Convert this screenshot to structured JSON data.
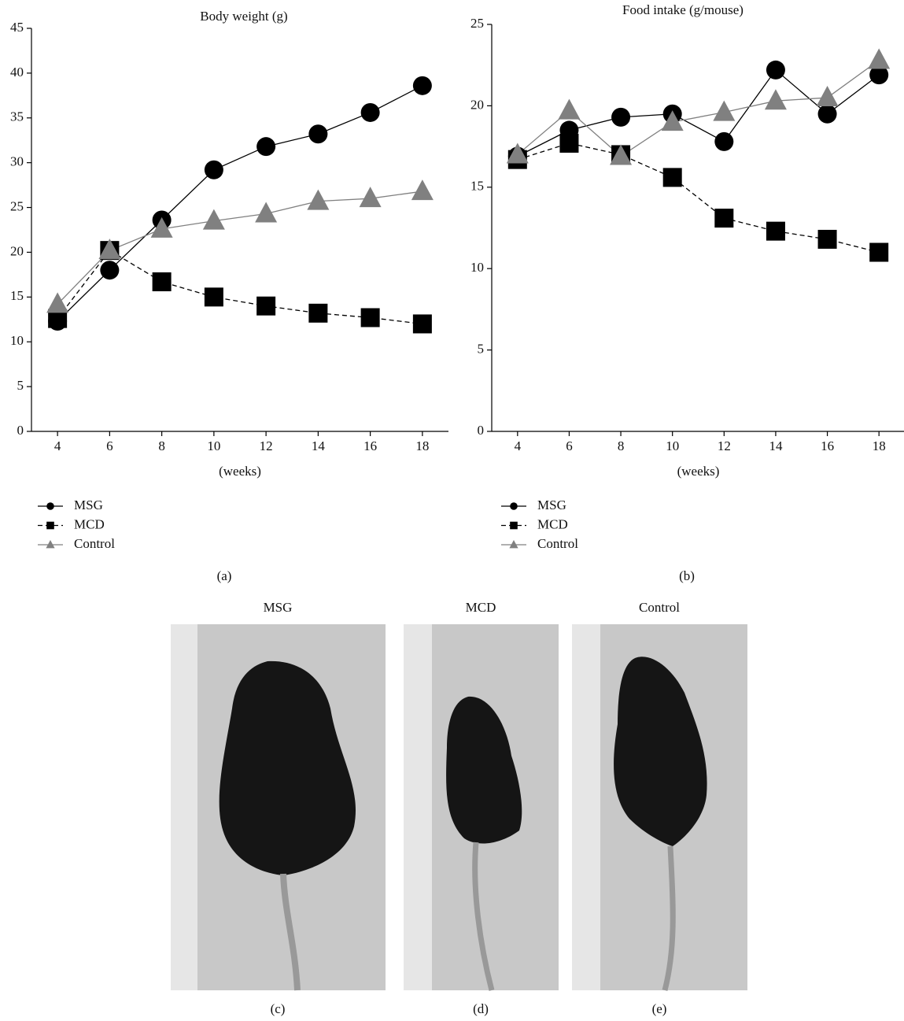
{
  "chart_data": [
    {
      "type": "line",
      "title": "Body weight (g)",
      "x_label": "(weeks)",
      "panel_label": "(a)",
      "x": [
        4,
        6,
        8,
        10,
        12,
        14,
        16,
        18
      ],
      "xlim": [
        3,
        19
      ],
      "xticks": [
        4,
        6,
        8,
        10,
        12,
        14,
        16,
        18
      ],
      "ylim": [
        0,
        45
      ],
      "yticks": [
        0,
        5,
        10,
        15,
        20,
        25,
        30,
        35,
        40,
        45
      ],
      "series": [
        {
          "name": "MSG",
          "color": "#000000",
          "marker": "circle",
          "dashed": false,
          "values": [
            12.3,
            18.0,
            23.6,
            29.2,
            31.8,
            33.2,
            35.6,
            38.6
          ]
        },
        {
          "name": "MCD",
          "color": "#000000",
          "marker": "square",
          "dashed": true,
          "values": [
            12.6,
            20.2,
            16.7,
            15.0,
            14.0,
            13.2,
            12.7,
            12.0
          ]
        },
        {
          "name": "Control",
          "color": "#808080",
          "marker": "triangle",
          "dashed": false,
          "values": [
            14.2,
            20.2,
            22.6,
            23.5,
            24.3,
            25.7,
            26.0,
            26.8
          ]
        }
      ]
    },
    {
      "type": "line",
      "title": "Food intake (g/mouse)",
      "x_label": "(weeks)",
      "panel_label": "(b)",
      "x": [
        4,
        6,
        8,
        10,
        12,
        14,
        16,
        18
      ],
      "xlim": [
        3,
        19
      ],
      "xticks": [
        4,
        6,
        8,
        10,
        12,
        14,
        16,
        18
      ],
      "ylim": [
        0,
        25
      ],
      "yticks": [
        0,
        5,
        10,
        15,
        20,
        25
      ],
      "series": [
        {
          "name": "MSG",
          "color": "#000000",
          "marker": "circle",
          "dashed": false,
          "values": [
            16.9,
            18.5,
            19.3,
            19.5,
            17.8,
            22.2,
            19.5,
            21.9
          ]
        },
        {
          "name": "MCD",
          "color": "#000000",
          "marker": "square",
          "dashed": true,
          "values": [
            16.7,
            17.7,
            17.0,
            15.6,
            13.1,
            12.3,
            11.8,
            11.0
          ]
        },
        {
          "name": "Control",
          "color": "#808080",
          "marker": "triangle",
          "dashed": false,
          "values": [
            17.0,
            19.7,
            16.9,
            19.0,
            19.6,
            20.3,
            20.5,
            22.8
          ]
        }
      ]
    }
  ],
  "figure": {
    "panels": [
      {
        "title": "MSG",
        "label": "(c)"
      },
      {
        "title": "MCD",
        "label": "(d)"
      },
      {
        "title": "Control",
        "label": "(e)"
      }
    ]
  }
}
